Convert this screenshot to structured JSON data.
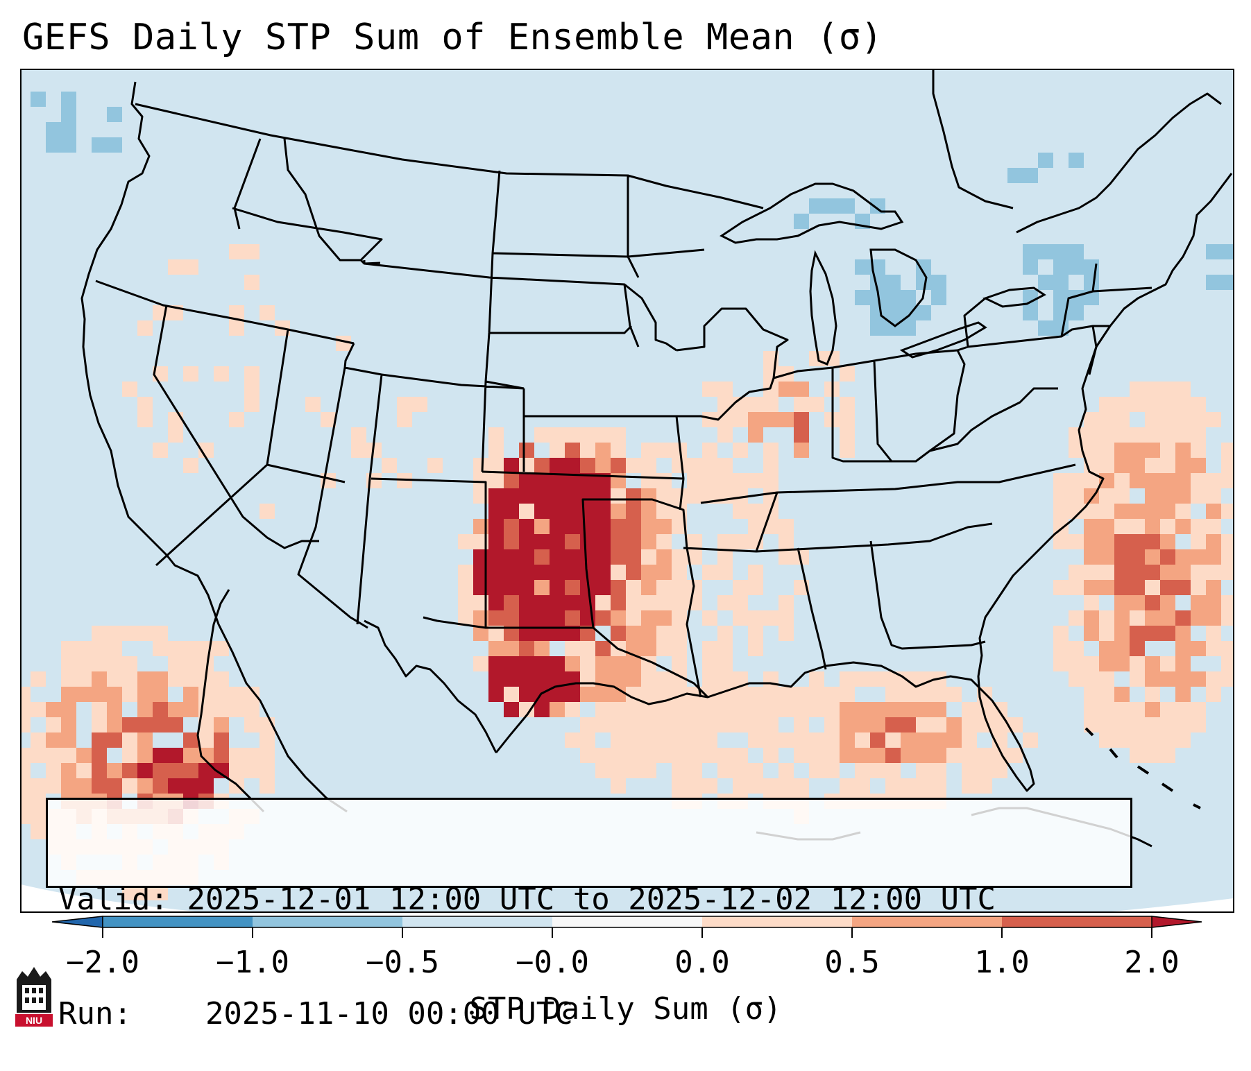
{
  "title": "GEFS Daily STP Sum of Ensemble Mean (σ)",
  "info": {
    "valid_label": "Valid:",
    "valid_value": "2025-12-01 12:00 UTC to 2025-12-02 12:00 UTC",
    "run_label": "Run:",
    "run_value": "2025-11-10 00:00 UTC"
  },
  "colorbar": {
    "title": "STP Daily Sum (σ)",
    "tick_labels": [
      "−2.0",
      "−1.0",
      "−0.5",
      "−0.0",
      "0.0",
      "0.5",
      "1.0",
      "2.0"
    ],
    "colors": [
      "#4393c3",
      "#92c5de",
      "#d1e5f0",
      "#f7f7f7",
      "#fddbc7",
      "#f4a582",
      "#d6604d",
      "#b2182b"
    ],
    "under_color": "#2166ac",
    "over_color": "#b2182b"
  },
  "logo": {
    "text": "NIU",
    "color": "#c8102e"
  },
  "colors": {
    "land_sea_background": "#d1e5f0",
    "map_outline": "#000000"
  }
}
